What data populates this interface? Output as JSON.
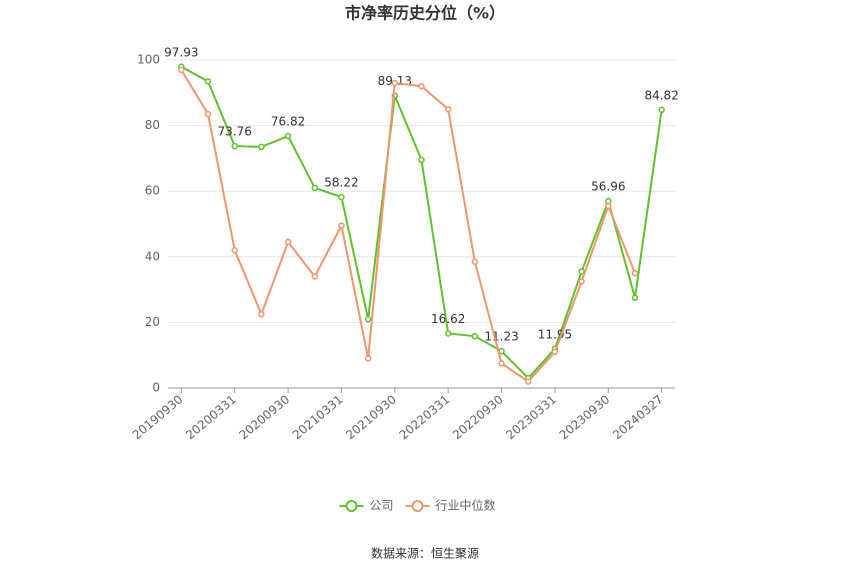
{
  "chart_data": {
    "type": "line",
    "title": "市净率历史分位（%）",
    "categories": [
      "20190930",
      null,
      "20200331",
      null,
      "20200930",
      null,
      "20210331",
      null,
      "20210930",
      null,
      "20220331",
      null,
      "20220930",
      null,
      "20230331",
      null,
      "20230930",
      null,
      "20240327"
    ],
    "series": [
      {
        "name": "公司",
        "color": "#5cc42a",
        "values": [
          97.93,
          93.5,
          73.76,
          73.5,
          76.82,
          61,
          58.22,
          21,
          89.13,
          69.5,
          16.62,
          15.8,
          11.23,
          3,
          11.95,
          35.5,
          56.96,
          27.5,
          84.82
        ],
        "value_labels": [
          "97.93",
          null,
          "73.76",
          null,
          "76.82",
          null,
          "58.22",
          null,
          "89.13",
          null,
          "16.62",
          null,
          "11.23",
          null,
          "11.95",
          null,
          "56.96",
          null,
          "84.82"
        ]
      },
      {
        "name": "行业中位数",
        "color": "#f2956b",
        "values": [
          97,
          83.5,
          42,
          22.5,
          44.5,
          34,
          49.5,
          9,
          93,
          92,
          85,
          38.5,
          7.5,
          2,
          11,
          32.5,
          55.5,
          35,
          null
        ]
      }
    ],
    "ylim": [
      0,
      100
    ],
    "yticks": [
      0,
      20,
      40,
      60,
      80,
      100
    ],
    "grid": true,
    "source": "数据来源：恒生聚源"
  }
}
